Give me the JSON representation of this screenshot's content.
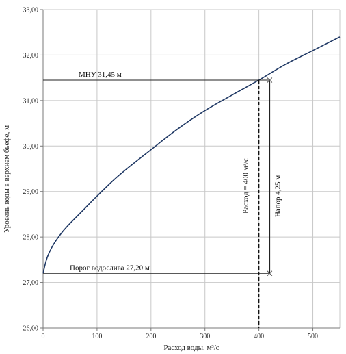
{
  "chart_data": {
    "type": "line",
    "title": "",
    "xlabel": "Расход воды, м³/с",
    "ylabel": "Уровень воды в верхнем бьефе, м",
    "xlim": [
      0,
      550
    ],
    "ylim": [
      26.0,
      33.0
    ],
    "xticks": [
      0,
      100,
      200,
      300,
      400,
      500
    ],
    "xtick_labels": [
      "0",
      "100",
      "200",
      "300",
      "400",
      "500"
    ],
    "yticks": [
      26.0,
      27.0,
      28.0,
      29.0,
      30.0,
      31.0,
      32.0,
      33.0
    ],
    "ytick_labels": [
      "26,00",
      "27,00",
      "28,00",
      "29,00",
      "30,00",
      "31,00",
      "32,00",
      "33,00"
    ],
    "grid": true,
    "series": [
      {
        "color": "#1f3864",
        "x": [
          0,
          5,
          10,
          20,
          35,
          50,
          75,
          100,
          140,
          200,
          250,
          300,
          350,
          400,
          450,
          500,
          550
        ],
        "y": [
          27.2,
          27.45,
          27.62,
          27.85,
          28.1,
          28.3,
          28.6,
          28.9,
          29.35,
          29.92,
          30.38,
          30.78,
          31.12,
          31.45,
          31.8,
          32.1,
          32.4
        ]
      }
    ],
    "annotations": {
      "mnu": {
        "label": "МНУ   31,45 м",
        "y": 31.45
      },
      "sill": {
        "label": "Порог водослива  27,20 м",
        "y": 27.2
      },
      "discharge": {
        "label": "Расход = 400 м³/с",
        "x": 400
      },
      "head": {
        "label": "Напор  4,25 м",
        "x": 420,
        "y_from": 27.2,
        "y_to": 31.45
      }
    }
  }
}
